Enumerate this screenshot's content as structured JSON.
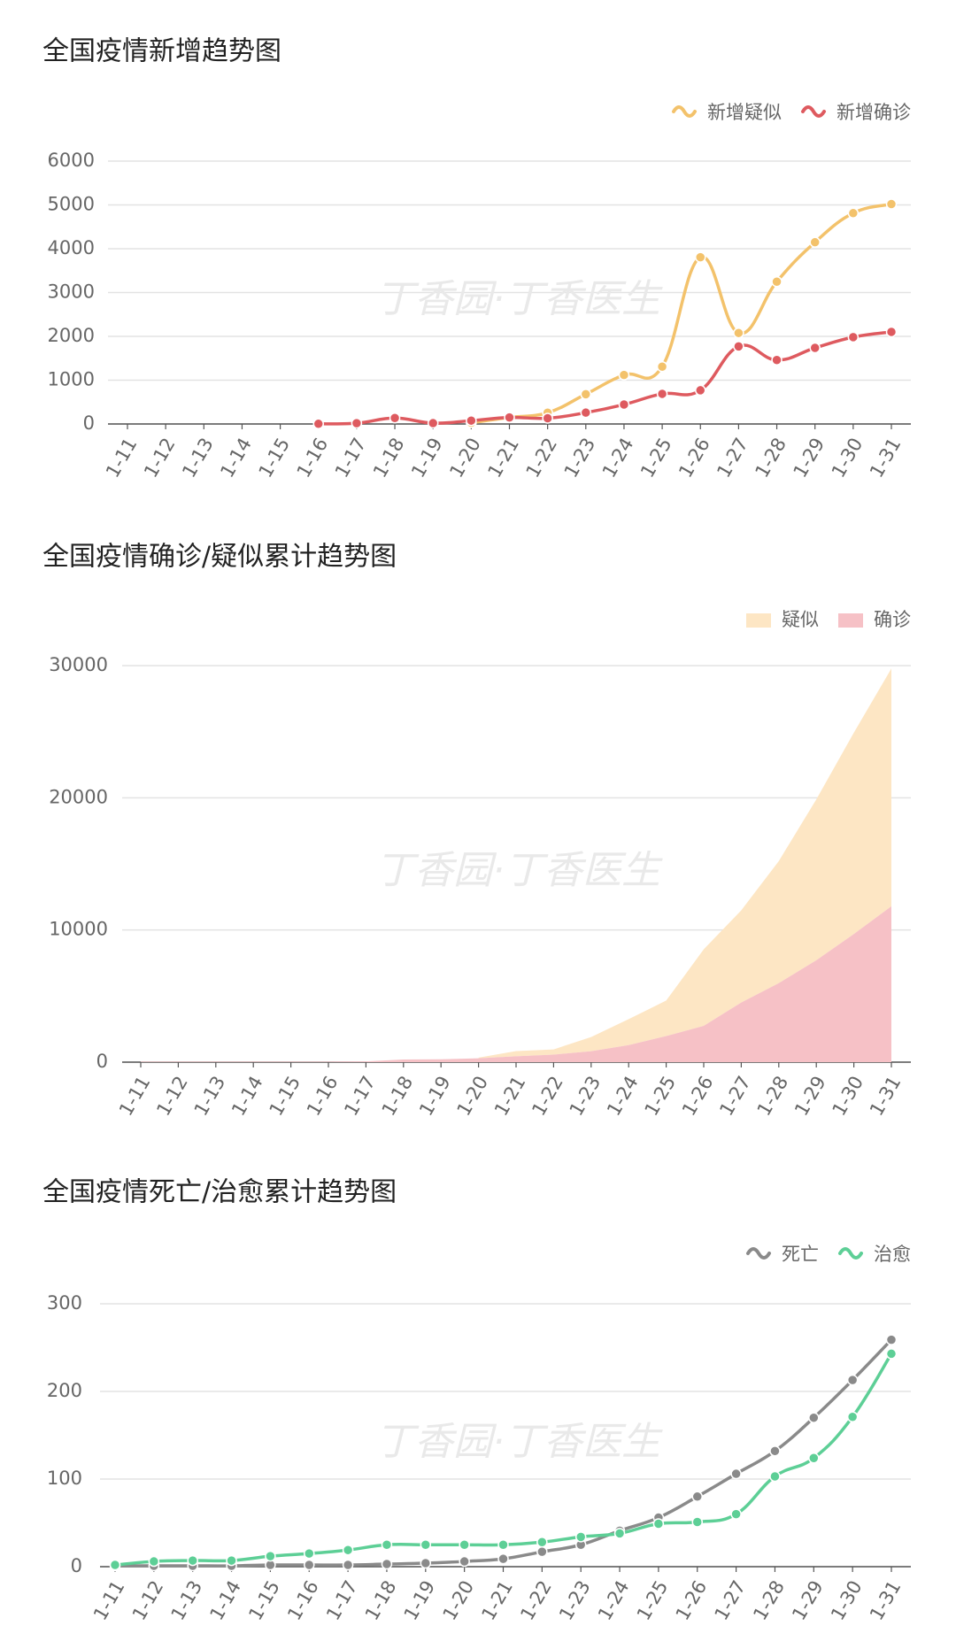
{
  "chart_data": [
    {
      "type": "line",
      "title": "全国疫情新增趋势图",
      "watermark": "丁香园·丁香医生",
      "categories": [
        "1-11",
        "1-12",
        "1-13",
        "1-14",
        "1-15",
        "1-16",
        "1-17",
        "1-18",
        "1-19",
        "1-20",
        "1-21",
        "1-22",
        "1-23",
        "1-24",
        "1-25",
        "1-26",
        "1-27",
        "1-28",
        "1-29",
        "1-30",
        "1-31"
      ],
      "series": [
        {
          "name": "新增疑似",
          "color": "#f3c26b",
          "values": [
            null,
            null,
            null,
            null,
            null,
            null,
            null,
            null,
            null,
            27,
            149,
            257,
            680,
            1118,
            1309,
            3806,
            2077,
            3248,
            4148,
            4812,
            5019
          ]
        },
        {
          "name": "新增确诊",
          "color": "#de5a5f",
          "values": [
            null,
            null,
            null,
            null,
            null,
            4,
            17,
            136,
            19,
            77,
            149,
            131,
            259,
            444,
            688,
            769,
            1771,
            1459,
            1737,
            1982,
            2102
          ]
        }
      ],
      "ylim": [
        0,
        6000
      ],
      "yticks": [
        0,
        1000,
        2000,
        3000,
        4000,
        5000,
        6000
      ],
      "grid": true,
      "smooth": true,
      "markers": true,
      "legend": "top-right"
    },
    {
      "type": "area",
      "title": "全国疫情确诊/疑似累计趋势图",
      "watermark": "丁香园·丁香医生",
      "categories": [
        "1-11",
        "1-12",
        "1-13",
        "1-14",
        "1-15",
        "1-16",
        "1-17",
        "1-18",
        "1-19",
        "1-20",
        "1-21",
        "1-22",
        "1-23",
        "1-24",
        "1-25",
        "1-26",
        "1-27",
        "1-28",
        "1-29",
        "1-30",
        "1-31"
      ],
      "series": [
        {
          "name": "疑似",
          "color": "#fde6c4",
          "values": [
            null,
            null,
            null,
            null,
            null,
            null,
            null,
            null,
            null,
            54,
            393,
            393,
            1072,
            1965,
            2684,
            5794,
            6973,
            9239,
            12167,
            15238,
            17988
          ]
        },
        {
          "name": "确诊",
          "color": "#f6c1c6",
          "values": [
            41,
            41,
            41,
            41,
            41,
            45,
            62,
            198,
            218,
            291,
            440,
            571,
            830,
            1287,
            1975,
            2744,
            4515,
            5974,
            7711,
            9692,
            11791
          ]
        }
      ],
      "stacked": true,
      "ylim": [
        0,
        30000
      ],
      "yticks": [
        0,
        10000,
        20000,
        30000
      ],
      "grid": true,
      "legend": "top-right"
    },
    {
      "type": "line",
      "title": "全国疫情死亡/治愈累计趋势图",
      "watermark": "丁香园·丁香医生",
      "categories": [
        "1-11",
        "1-12",
        "1-13",
        "1-14",
        "1-15",
        "1-16",
        "1-17",
        "1-18",
        "1-19",
        "1-20",
        "1-21",
        "1-22",
        "1-23",
        "1-24",
        "1-25",
        "1-26",
        "1-27",
        "1-28",
        "1-29",
        "1-30",
        "1-31"
      ],
      "series": [
        {
          "name": "死亡",
          "color": "#8a8a8a",
          "values": [
            1,
            1,
            1,
            1,
            2,
            2,
            2,
            3,
            4,
            6,
            9,
            17,
            25,
            41,
            56,
            80,
            106,
            132,
            170,
            213,
            259
          ]
        },
        {
          "name": "治愈",
          "color": "#5dcf96",
          "values": [
            2,
            6,
            7,
            7,
            12,
            15,
            19,
            25,
            25,
            25,
            25,
            28,
            34,
            38,
            49,
            51,
            60,
            103,
            124,
            171,
            243
          ]
        }
      ],
      "ylim": [
        0,
        300
      ],
      "yticks": [
        0,
        100,
        200,
        300
      ],
      "grid": true,
      "smooth": true,
      "markers": true,
      "legend": "top-right"
    }
  ]
}
